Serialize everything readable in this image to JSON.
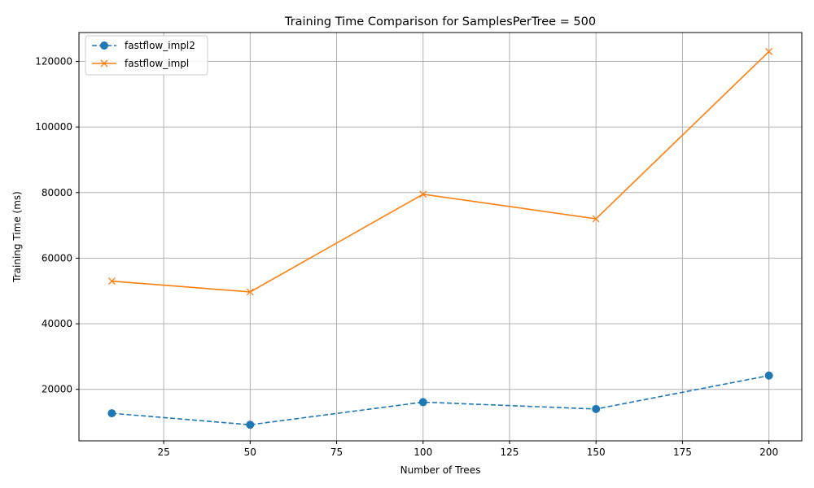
{
  "chart_data": {
    "type": "line",
    "title": "Training Time Comparison for SamplesPerTree = 500",
    "xlabel": "Number of Trees",
    "ylabel": "Training Time (ms)",
    "x": [
      10,
      50,
      100,
      150,
      200
    ],
    "xlim": [
      0.5,
      209.5
    ],
    "ylim": [
      4300,
      128800
    ],
    "xticks": [
      25,
      50,
      75,
      100,
      125,
      150,
      175,
      200
    ],
    "yticks": [
      20000,
      40000,
      60000,
      80000,
      100000,
      120000
    ],
    "grid": true,
    "legend_position": "top-left",
    "series": [
      {
        "name": "fastflow_impl2",
        "values": [
          12700,
          9200,
          16100,
          14000,
          24200
        ],
        "color": "#1f77b4",
        "linestyle": "dashed",
        "marker": "circle"
      },
      {
        "name": "fastflow_impl",
        "values": [
          53000,
          49700,
          79500,
          72000,
          123000
        ],
        "color": "#ff7f0e",
        "linestyle": "solid",
        "marker": "x"
      }
    ]
  }
}
